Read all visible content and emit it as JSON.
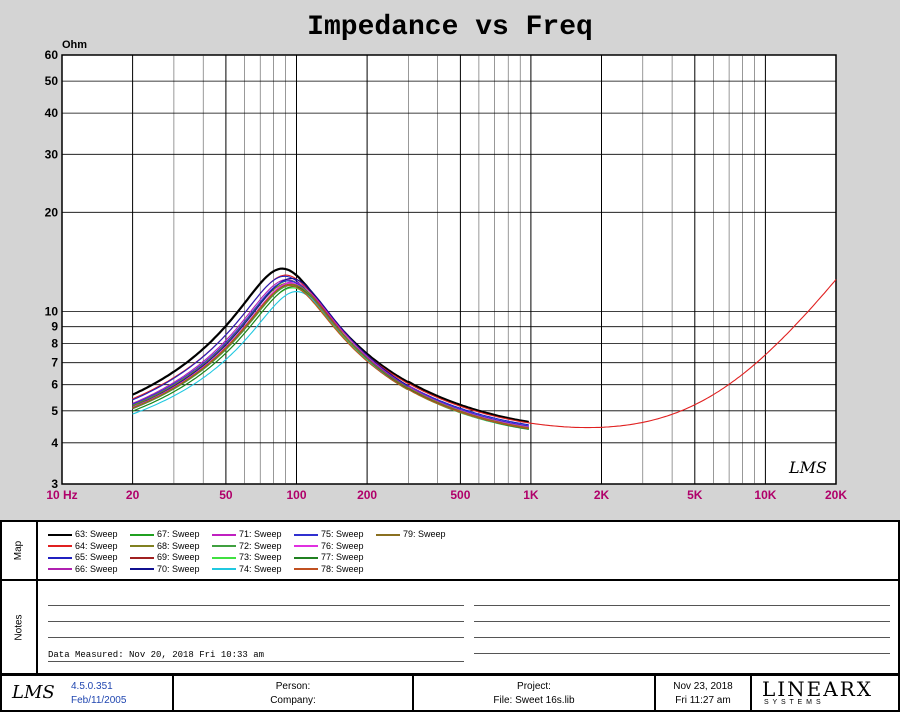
{
  "chart_data": {
    "type": "line",
    "title": "Impedance vs Freq",
    "ylabel": "Ohm",
    "xscale": "log",
    "yscale": "log",
    "xlim": [
      10,
      20000
    ],
    "ylim": [
      3,
      60
    ],
    "grid": true,
    "logo": "LMS",
    "x_tick_labels": [
      {
        "v": 10,
        "t": "10 Hz"
      },
      {
        "v": 20,
        "t": "20"
      },
      {
        "v": 50,
        "t": "50"
      },
      {
        "v": 100,
        "t": "100"
      },
      {
        "v": 200,
        "t": "200"
      },
      {
        "v": 500,
        "t": "500"
      },
      {
        "v": 1000,
        "t": "1K"
      },
      {
        "v": 2000,
        "t": "2K"
      },
      {
        "v": 5000,
        "t": "5K"
      },
      {
        "v": 10000,
        "t": "10K"
      },
      {
        "v": 20000,
        "t": "20K"
      }
    ],
    "y_tick_labels": [
      3,
      4,
      5,
      6,
      7,
      8,
      9,
      10,
      20,
      30,
      40,
      50,
      60
    ],
    "series": [
      {
        "name": "63: Sweep",
        "color": "#000000",
        "fs": 87,
        "zmax": 13.5,
        "zmin": 4.0,
        "base": 3.9,
        "end": 1000,
        "width": 2.2
      },
      {
        "name": "64: Sweep",
        "color": "#e02020",
        "fs": 90,
        "zmax": 12.9,
        "zmin": 3.95,
        "base": 3.9,
        "end": 20000,
        "width": 1.1
      },
      {
        "name": "65: Sweep",
        "color": "#2020c0",
        "fs": 89,
        "zmax": 12.8,
        "zmin": 3.9,
        "base": 3.85,
        "end": 1000,
        "width": 1.1
      },
      {
        "name": "66: Sweep",
        "color": "#b020b0",
        "fs": 91,
        "zmax": 12.5,
        "zmin": 3.88,
        "base": 3.8,
        "end": 1000,
        "width": 1.1
      },
      {
        "name": "67: Sweep",
        "color": "#20a020",
        "fs": 93,
        "zmax": 12.4,
        "zmin": 3.8,
        "base": 3.75,
        "end": 1000,
        "width": 1.1
      },
      {
        "name": "68: Sweep",
        "color": "#808020",
        "fs": 92,
        "zmax": 12.2,
        "zmin": 3.82,
        "base": 3.8,
        "end": 1000,
        "width": 1.1
      },
      {
        "name": "69: Sweep",
        "color": "#a02020",
        "fs": 94,
        "zmax": 12.1,
        "zmin": 3.78,
        "base": 3.75,
        "end": 1000,
        "width": 1.1
      },
      {
        "name": "70: Sweep",
        "color": "#101090",
        "fs": 95,
        "zmax": 12.6,
        "zmin": 3.75,
        "base": 3.7,
        "end": 1000,
        "width": 1.1
      },
      {
        "name": "71: Sweep",
        "color": "#c020c0",
        "fs": 96,
        "zmax": 12.3,
        "zmin": 3.9,
        "base": 3.7,
        "end": 1000,
        "width": 1.1
      },
      {
        "name": "72: Sweep",
        "color": "#40a040",
        "fs": 95,
        "zmax": 12.0,
        "zmin": 3.85,
        "base": 3.75,
        "end": 1000,
        "width": 1.1
      },
      {
        "name": "73: Sweep",
        "color": "#40e040",
        "fs": 96,
        "zmax": 11.8,
        "zmin": 3.8,
        "base": 3.7,
        "end": 1000,
        "width": 1.1
      },
      {
        "name": "74: Sweep",
        "color": "#20c8e0",
        "fs": 100,
        "zmax": 11.5,
        "zmin": 3.82,
        "base": 3.7,
        "end": 1000,
        "width": 1.1
      },
      {
        "name": "75: Sweep",
        "color": "#3030d0",
        "fs": 92,
        "zmax": 12.4,
        "zmin": 3.9,
        "base": 3.8,
        "end": 1000,
        "width": 1.1
      },
      {
        "name": "76: Sweep",
        "color": "#e030e0",
        "fs": 94,
        "zmax": 12.2,
        "zmin": 3.88,
        "base": 3.75,
        "end": 1000,
        "width": 1.1
      },
      {
        "name": "77: Sweep",
        "color": "#208020",
        "fs": 97,
        "zmax": 11.9,
        "zmin": 3.78,
        "base": 3.7,
        "end": 1000,
        "width": 1.1
      },
      {
        "name": "78: Sweep",
        "color": "#c05020",
        "fs": 93,
        "zmax": 12.0,
        "zmin": 3.8,
        "base": 3.75,
        "end": 1000,
        "width": 1.1
      },
      {
        "name": "79: Sweep",
        "color": "#8a7020",
        "fs": 95,
        "zmax": 12.1,
        "zmin": 3.82,
        "base": 3.75,
        "end": 1000,
        "width": 1.1
      }
    ]
  },
  "map": {
    "label": "Map"
  },
  "notes": {
    "label": "Notes",
    "measured": "Data Measured: Nov 20, 2018  Fri 10:33 am"
  },
  "footer": {
    "logo": "LMS",
    "version": "4.5.0.351",
    "version_date": "Feb/11/2005",
    "person_label": "Person:",
    "company_label": "Company:",
    "project_label": "Project:",
    "file_label": "File: Sweet 16s.lib",
    "date": "Nov 23, 2018",
    "time": "Fri 11:27 am",
    "brand": "LINEARX",
    "brand_sub": "S Y S T E M S"
  }
}
